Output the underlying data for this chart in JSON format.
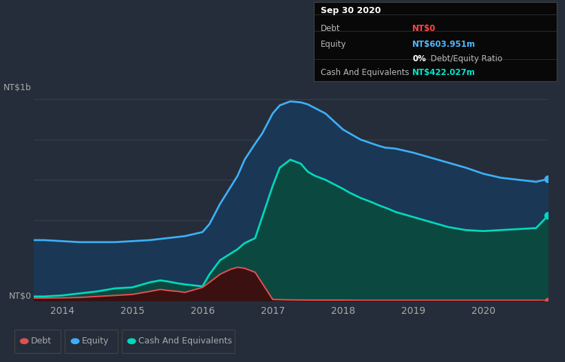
{
  "bg_color": "#252d3a",
  "plot_bg_color": "#252d3a",
  "grid_color": "#334050",
  "title_box": {
    "date": "Sep 30 2020",
    "debt_label": "Debt",
    "debt_value": "NT$0",
    "debt_color": "#ff4444",
    "equity_label": "Equity",
    "equity_value": "NT$603.951m",
    "equity_color": "#4db8ff",
    "ratio_bold": "0%",
    "ratio_rest": " Debt/Equity Ratio",
    "cash_label": "Cash And Equivalents",
    "cash_value": "NT$422.027m",
    "cash_color": "#00e5cc",
    "box_bg": "#080808",
    "box_border": "#444444"
  },
  "ylabel": "NT$1b",
  "y0label": "NT$0",
  "xlim": [
    2013.6,
    2020.92
  ],
  "ylim": [
    0.0,
    1.08
  ],
  "xticks": [
    2014,
    2015,
    2016,
    2017,
    2018,
    2019,
    2020
  ],
  "equity_color": "#3db0f7",
  "equity_fill": "#1d3a5c",
  "cash_color": "#00d9bb",
  "cash_fill": "#0a4a40",
  "debt_color": "#e05050",
  "debt_fill": "#3a1515",
  "equity_x": [
    2013.6,
    2013.75,
    2014.0,
    2014.25,
    2014.5,
    2014.75,
    2015.0,
    2015.25,
    2015.5,
    2015.75,
    2016.0,
    2016.1,
    2016.25,
    2016.5,
    2016.6,
    2016.75,
    2016.85,
    2017.0,
    2017.1,
    2017.25,
    2017.4,
    2017.5,
    2017.75,
    2018.0,
    2018.25,
    2018.5,
    2018.6,
    2018.75,
    2019.0,
    2019.25,
    2019.5,
    2019.75,
    2020.0,
    2020.25,
    2020.5,
    2020.75,
    2020.92
  ],
  "equity_y": [
    0.3,
    0.3,
    0.295,
    0.29,
    0.29,
    0.29,
    0.295,
    0.3,
    0.31,
    0.32,
    0.34,
    0.38,
    0.48,
    0.62,
    0.7,
    0.78,
    0.83,
    0.93,
    0.97,
    0.99,
    0.985,
    0.975,
    0.93,
    0.85,
    0.8,
    0.77,
    0.76,
    0.755,
    0.735,
    0.71,
    0.685,
    0.66,
    0.63,
    0.61,
    0.6,
    0.59,
    0.604
  ],
  "cash_x": [
    2013.6,
    2013.75,
    2014.0,
    2014.25,
    2014.5,
    2014.75,
    2015.0,
    2015.1,
    2015.25,
    2015.4,
    2015.5,
    2015.65,
    2015.75,
    2016.0,
    2016.1,
    2016.25,
    2016.5,
    2016.6,
    2016.75,
    2017.0,
    2017.1,
    2017.25,
    2017.4,
    2017.5,
    2017.6,
    2017.75,
    2018.0,
    2018.1,
    2018.25,
    2018.4,
    2018.5,
    2018.65,
    2018.75,
    2019.0,
    2019.25,
    2019.5,
    2019.75,
    2020.0,
    2020.25,
    2020.5,
    2020.75,
    2020.92
  ],
  "cash_y": [
    0.02,
    0.02,
    0.025,
    0.035,
    0.045,
    0.06,
    0.065,
    0.075,
    0.09,
    0.1,
    0.095,
    0.085,
    0.08,
    0.07,
    0.13,
    0.2,
    0.255,
    0.285,
    0.31,
    0.57,
    0.66,
    0.7,
    0.68,
    0.64,
    0.62,
    0.6,
    0.555,
    0.535,
    0.51,
    0.49,
    0.475,
    0.455,
    0.44,
    0.415,
    0.39,
    0.365,
    0.35,
    0.345,
    0.35,
    0.355,
    0.36,
    0.422
  ],
  "debt_x": [
    2013.6,
    2013.75,
    2014.0,
    2014.25,
    2014.5,
    2014.75,
    2015.0,
    2015.25,
    2015.4,
    2015.5,
    2015.65,
    2015.75,
    2016.0,
    2016.1,
    2016.25,
    2016.4,
    2016.5,
    2016.6,
    2016.75,
    2017.0,
    2017.25,
    2017.5,
    2017.75,
    2018.0,
    2018.25,
    2018.5,
    2018.75,
    2019.0,
    2019.25,
    2019.5,
    2019.75,
    2020.0,
    2020.25,
    2020.5,
    2020.75,
    2020.92
  ],
  "debt_y": [
    0.012,
    0.012,
    0.013,
    0.015,
    0.02,
    0.025,
    0.03,
    0.045,
    0.055,
    0.05,
    0.045,
    0.04,
    0.065,
    0.09,
    0.13,
    0.155,
    0.165,
    0.16,
    0.14,
    0.005,
    0.003,
    0.002,
    0.002,
    0.002,
    0.001,
    0.001,
    0.001,
    0.001,
    0.001,
    0.001,
    0.001,
    0.001,
    0.001,
    0.001,
    0.001,
    0.0
  ],
  "legend_items": [
    {
      "label": "Debt",
      "color": "#e05050"
    },
    {
      "label": "Equity",
      "color": "#3db0f7"
    },
    {
      "label": "Cash And Equivalents",
      "color": "#00d9bb"
    }
  ]
}
